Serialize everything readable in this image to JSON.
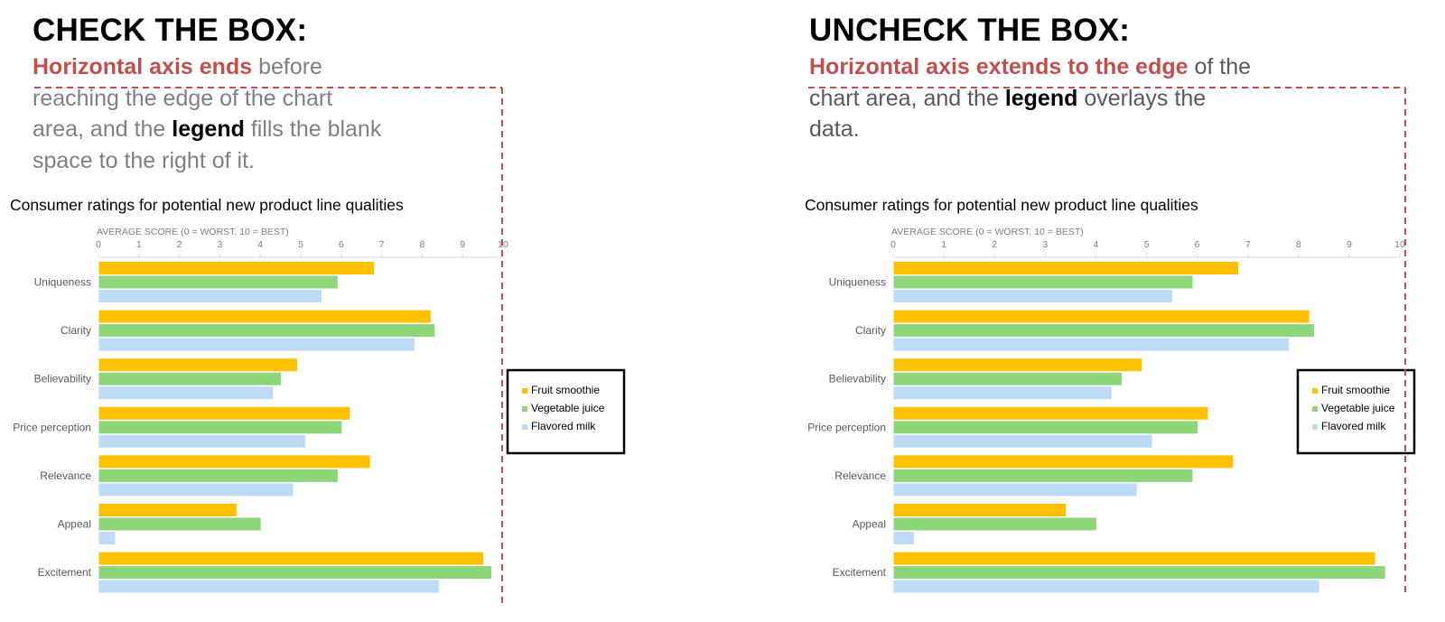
{
  "panels": [
    {
      "heading": "CHECK THE BOX:",
      "desc": {
        "red": "Horizontal axis ends",
        "t1": " before reaching the edge of the chart area, and the ",
        "bold": "legend",
        "t2": " fills the blank space to the right of it."
      }
    },
    {
      "heading": "UNCHECK THE BOX:",
      "desc": {
        "red": "Horizontal axis extends to the edge",
        "t1": " of the chart area, and the ",
        "bold": "legend",
        "t2": " overlays the data."
      }
    }
  ],
  "colors": {
    "annotation": "#c0504d",
    "fruit": "#ffc000",
    "vegetable": "#8ed67a",
    "milk": "#bddbf7"
  },
  "chart_data": [
    {
      "type": "bar",
      "orientation": "horizontal",
      "title": "Consumer ratings for potential new product line qualities",
      "xlabel": "AVERAGE SCORE (0 = WORST, 10 = BEST)",
      "xlim": [
        0,
        10
      ],
      "xticks": [
        "0",
        "1",
        "2",
        "3",
        "4",
        "5",
        "6",
        "7",
        "8",
        "9",
        "10"
      ],
      "categories": [
        "Uniqueness",
        "Clarity",
        "Believability",
        "Price perception",
        "Relevance",
        "Appeal",
        "Excitement"
      ],
      "series": [
        {
          "name": "Fruit smoothie",
          "values": [
            6.8,
            8.2,
            4.9,
            6.2,
            6.7,
            3.4,
            9.5
          ]
        },
        {
          "name": "Vegetable juice",
          "values": [
            5.9,
            8.3,
            4.5,
            6.0,
            5.9,
            4.0,
            9.7
          ]
        },
        {
          "name": "Flavored milk",
          "values": [
            5.5,
            7.8,
            4.3,
            5.1,
            4.8,
            0.4,
            8.4
          ]
        }
      ],
      "legend": "right"
    },
    {
      "type": "bar",
      "orientation": "horizontal",
      "title": "Consumer ratings for potential new product line qualities",
      "xlabel": "AVERAGE SCORE (0 = WORST, 10 = BEST)",
      "xlim": [
        0,
        10
      ],
      "xticks": [
        "0",
        "1",
        "2",
        "3",
        "4",
        "5",
        "6",
        "7",
        "8",
        "9",
        "10"
      ],
      "categories": [
        "Uniqueness",
        "Clarity",
        "Believability",
        "Price perception",
        "Relevance",
        "Appeal",
        "Excitement"
      ],
      "series": [
        {
          "name": "Fruit smoothie",
          "values": [
            6.8,
            8.2,
            4.9,
            6.2,
            6.7,
            3.4,
            9.5
          ]
        },
        {
          "name": "Vegetable juice",
          "values": [
            5.9,
            8.3,
            4.5,
            6.0,
            5.9,
            4.0,
            9.7
          ]
        },
        {
          "name": "Flavored milk",
          "values": [
            5.5,
            7.8,
            4.3,
            5.1,
            4.8,
            0.4,
            8.4
          ]
        }
      ],
      "legend": "right (overlaying data)"
    }
  ]
}
